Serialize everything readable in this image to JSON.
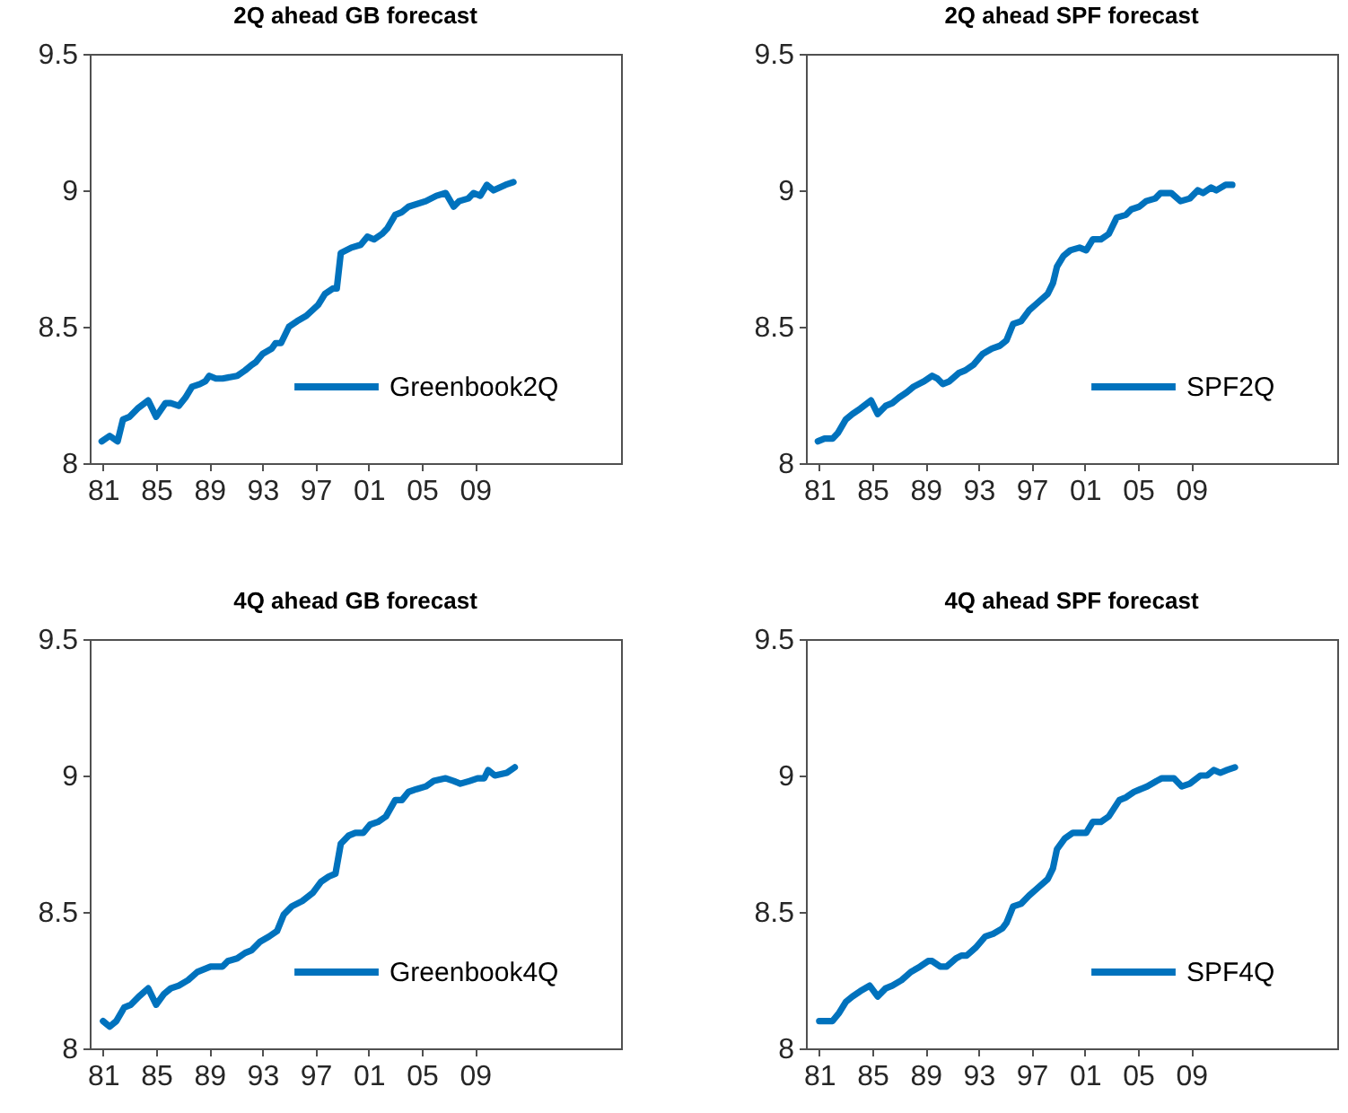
{
  "chart_data": [
    {
      "type": "line",
      "title": "2Q ahead GB forecast",
      "legend": "bottom right",
      "line_style": "solid",
      "xlim": [
        1980,
        2020
      ],
      "ylim": [
        8,
        9.5
      ],
      "yticks": [
        8,
        8.5,
        9,
        9.5
      ],
      "xticks": [
        {
          "value": 1981,
          "label": "81"
        },
        {
          "value": 1985,
          "label": "85"
        },
        {
          "value": 1989,
          "label": "89"
        },
        {
          "value": 1993,
          "label": "93"
        },
        {
          "value": 1997,
          "label": "97"
        },
        {
          "value": 2001,
          "label": "01"
        },
        {
          "value": 2005,
          "label": "05"
        },
        {
          "value": 2009,
          "label": "09"
        }
      ],
      "x": [
        1980.9,
        1981.5,
        1982.1,
        1982.5,
        1983.0,
        1983.6,
        1984.4,
        1985.0,
        1985.7,
        1986.1,
        1986.7,
        1987.2,
        1987.7,
        1988.3,
        1988.7,
        1989.0,
        1989.5,
        1990.0,
        1991.1,
        1991.7,
        1992.2,
        1992.5,
        1993.0,
        1993.7,
        1994.0,
        1994.4,
        1995.0,
        1995.6,
        1996.3,
        1997.2,
        1997.7,
        1998.3,
        1998.6,
        1998.9,
        1999.7,
        2000.4,
        2000.9,
        2001.4,
        2002.0,
        2002.4,
        2003.0,
        2003.5,
        2004.0,
        2005.3,
        2006.1,
        2006.8,
        2007.4,
        2007.8,
        2008.5,
        2008.9,
        2009.4,
        2009.9,
        2010.4,
        2011.3,
        2011.9
      ],
      "series": [
        {
          "name": "Greenbook2Q",
          "color": "#0072bd",
          "values": [
            8.08,
            8.1,
            8.08,
            8.16,
            8.17,
            8.2,
            8.23,
            8.17,
            8.22,
            8.22,
            8.21,
            8.24,
            8.28,
            8.29,
            8.3,
            8.32,
            8.31,
            8.31,
            8.32,
            8.34,
            8.36,
            8.37,
            8.4,
            8.42,
            8.44,
            8.44,
            8.5,
            8.52,
            8.54,
            8.58,
            8.62,
            8.64,
            8.64,
            8.77,
            8.79,
            8.8,
            8.83,
            8.82,
            8.84,
            8.86,
            8.91,
            8.92,
            8.94,
            8.96,
            8.98,
            8.99,
            8.94,
            8.96,
            8.97,
            8.99,
            8.98,
            9.02,
            9.0,
            9.02,
            9.03
          ]
        }
      ]
    },
    {
      "type": "line",
      "title": "2Q ahead SPF forecast",
      "legend": "bottom right",
      "line_style": "solid",
      "xlim": [
        1980,
        2020
      ],
      "ylim": [
        8,
        9.5
      ],
      "yticks": [
        8,
        8.5,
        9,
        9.5
      ],
      "xticks": [
        {
          "value": 1981,
          "label": "81"
        },
        {
          "value": 1985,
          "label": "85"
        },
        {
          "value": 1989,
          "label": "89"
        },
        {
          "value": 1993,
          "label": "93"
        },
        {
          "value": 1997,
          "label": "97"
        },
        {
          "value": 2001,
          "label": "01"
        },
        {
          "value": 2005,
          "label": "05"
        },
        {
          "value": 2009,
          "label": "09"
        }
      ],
      "x": [
        1980.9,
        1981.4,
        1982.0,
        1982.4,
        1983.0,
        1983.5,
        1984.1,
        1984.9,
        1985.4,
        1986.0,
        1986.5,
        1987.0,
        1987.6,
        1988.1,
        1988.9,
        1989.5,
        1989.9,
        1990.3,
        1990.8,
        1991.5,
        1992.0,
        1992.6,
        1993.3,
        1994.0,
        1994.6,
        1995.1,
        1995.6,
        1996.2,
        1996.8,
        1997.5,
        1998.2,
        1998.6,
        1998.9,
        1999.4,
        1999.9,
        2000.6,
        2001.1,
        2001.6,
        2002.2,
        2002.8,
        2003.4,
        2004.1,
        2004.5,
        2005.1,
        2005.6,
        2006.3,
        2006.7,
        2007.5,
        2008.2,
        2008.9,
        2009.5,
        2009.9,
        2010.5,
        2010.9,
        2011.6,
        2012.1
      ],
      "series": [
        {
          "name": "SPF2Q",
          "color": "#0072bd",
          "values": [
            8.08,
            8.09,
            8.09,
            8.11,
            8.16,
            8.18,
            8.2,
            8.23,
            8.18,
            8.21,
            8.22,
            8.24,
            8.26,
            8.28,
            8.3,
            8.32,
            8.31,
            8.29,
            8.3,
            8.33,
            8.34,
            8.36,
            8.4,
            8.42,
            8.43,
            8.45,
            8.51,
            8.52,
            8.56,
            8.59,
            8.62,
            8.66,
            8.72,
            8.76,
            8.78,
            8.79,
            8.78,
            8.82,
            8.82,
            8.84,
            8.9,
            8.91,
            8.93,
            8.94,
            8.96,
            8.97,
            8.99,
            8.99,
            8.96,
            8.97,
            9.0,
            8.99,
            9.01,
            9.0,
            9.02,
            9.02
          ]
        }
      ]
    },
    {
      "type": "line",
      "title": "4Q ahead GB forecast",
      "legend": "bottom right",
      "line_style": "solid",
      "xlim": [
        1980,
        2020
      ],
      "ylim": [
        8,
        9.5
      ],
      "yticks": [
        8,
        8.5,
        9,
        9.5
      ],
      "xticks": [
        {
          "value": 1981,
          "label": "81"
        },
        {
          "value": 1985,
          "label": "85"
        },
        {
          "value": 1989,
          "label": "89"
        },
        {
          "value": 1993,
          "label": "93"
        },
        {
          "value": 1997,
          "label": "97"
        },
        {
          "value": 2001,
          "label": "01"
        },
        {
          "value": 2005,
          "label": "05"
        },
        {
          "value": 2009,
          "label": "09"
        }
      ],
      "x": [
        1981.0,
        1981.5,
        1982.0,
        1982.6,
        1983.1,
        1983.7,
        1984.4,
        1985.0,
        1985.6,
        1986.1,
        1986.7,
        1987.4,
        1988.1,
        1988.6,
        1989.1,
        1990.0,
        1990.4,
        1991.1,
        1991.7,
        1992.2,
        1992.8,
        1993.5,
        1994.1,
        1994.6,
        1995.2,
        1996.0,
        1996.8,
        1997.4,
        1998.0,
        1998.5,
        1998.9,
        1999.5,
        2000.0,
        2000.6,
        2001.1,
        2001.7,
        2002.3,
        2003.0,
        2003.5,
        2004.0,
        2004.6,
        2005.3,
        2005.9,
        2006.8,
        2007.4,
        2007.9,
        2008.6,
        2009.2,
        2009.7,
        2010.0,
        2010.5,
        2011.4,
        2012.0
      ],
      "series": [
        {
          "name": "Greenbook4Q",
          "color": "#0072bd",
          "values": [
            8.1,
            8.08,
            8.1,
            8.15,
            8.16,
            8.19,
            8.22,
            8.16,
            8.2,
            8.22,
            8.23,
            8.25,
            8.28,
            8.29,
            8.3,
            8.3,
            8.32,
            8.33,
            8.35,
            8.36,
            8.39,
            8.41,
            8.43,
            8.49,
            8.52,
            8.54,
            8.57,
            8.61,
            8.63,
            8.64,
            8.75,
            8.78,
            8.79,
            8.79,
            8.82,
            8.83,
            8.85,
            8.91,
            8.91,
            8.94,
            8.95,
            8.96,
            8.98,
            8.99,
            8.98,
            8.97,
            8.98,
            8.99,
            8.99,
            9.02,
            9.0,
            9.01,
            9.03
          ]
        }
      ]
    },
    {
      "type": "line",
      "title": "4Q ahead SPF forecast",
      "legend": "bottom right",
      "line_style": "solid",
      "xlim": [
        1980,
        2020
      ],
      "ylim": [
        8,
        9.5
      ],
      "yticks": [
        8,
        8.5,
        9,
        9.5
      ],
      "xticks": [
        {
          "value": 1981,
          "label": "81"
        },
        {
          "value": 1985,
          "label": "85"
        },
        {
          "value": 1989,
          "label": "89"
        },
        {
          "value": 1993,
          "label": "93"
        },
        {
          "value": 1997,
          "label": "97"
        },
        {
          "value": 2001,
          "label": "01"
        },
        {
          "value": 2005,
          "label": "05"
        },
        {
          "value": 2009,
          "label": "09"
        }
      ],
      "x": [
        1981.0,
        1982.0,
        1982.5,
        1983.0,
        1983.5,
        1984.1,
        1984.8,
        1985.4,
        1986.0,
        1986.5,
        1987.2,
        1987.9,
        1988.6,
        1989.2,
        1989.5,
        1990.1,
        1990.6,
        1991.3,
        1991.7,
        1992.1,
        1992.8,
        1993.5,
        1994.1,
        1994.8,
        1995.1,
        1995.6,
        1996.2,
        1996.8,
        1997.5,
        1998.2,
        1998.6,
        1998.9,
        1999.5,
        2000.1,
        2000.6,
        2001.1,
        2001.6,
        2002.2,
        2002.8,
        2003.6,
        2004.1,
        2004.7,
        2005.2,
        2005.7,
        2006.4,
        2006.8,
        2007.7,
        2008.3,
        2008.9,
        2009.7,
        2010.2,
        2010.7,
        2011.2,
        2011.7,
        2012.3
      ],
      "series": [
        {
          "name": "SPF4Q",
          "color": "#0072bd",
          "values": [
            8.1,
            8.1,
            8.13,
            8.17,
            8.19,
            8.21,
            8.23,
            8.19,
            8.22,
            8.23,
            8.25,
            8.28,
            8.3,
            8.32,
            8.32,
            8.3,
            8.3,
            8.33,
            8.34,
            8.34,
            8.37,
            8.41,
            8.42,
            8.44,
            8.46,
            8.52,
            8.53,
            8.56,
            8.59,
            8.62,
            8.66,
            8.73,
            8.77,
            8.79,
            8.79,
            8.79,
            8.83,
            8.83,
            8.85,
            8.91,
            8.92,
            8.94,
            8.95,
            8.96,
            8.98,
            8.99,
            8.99,
            8.96,
            8.97,
            9.0,
            9.0,
            9.02,
            9.01,
            9.02,
            9.03
          ]
        }
      ]
    }
  ]
}
